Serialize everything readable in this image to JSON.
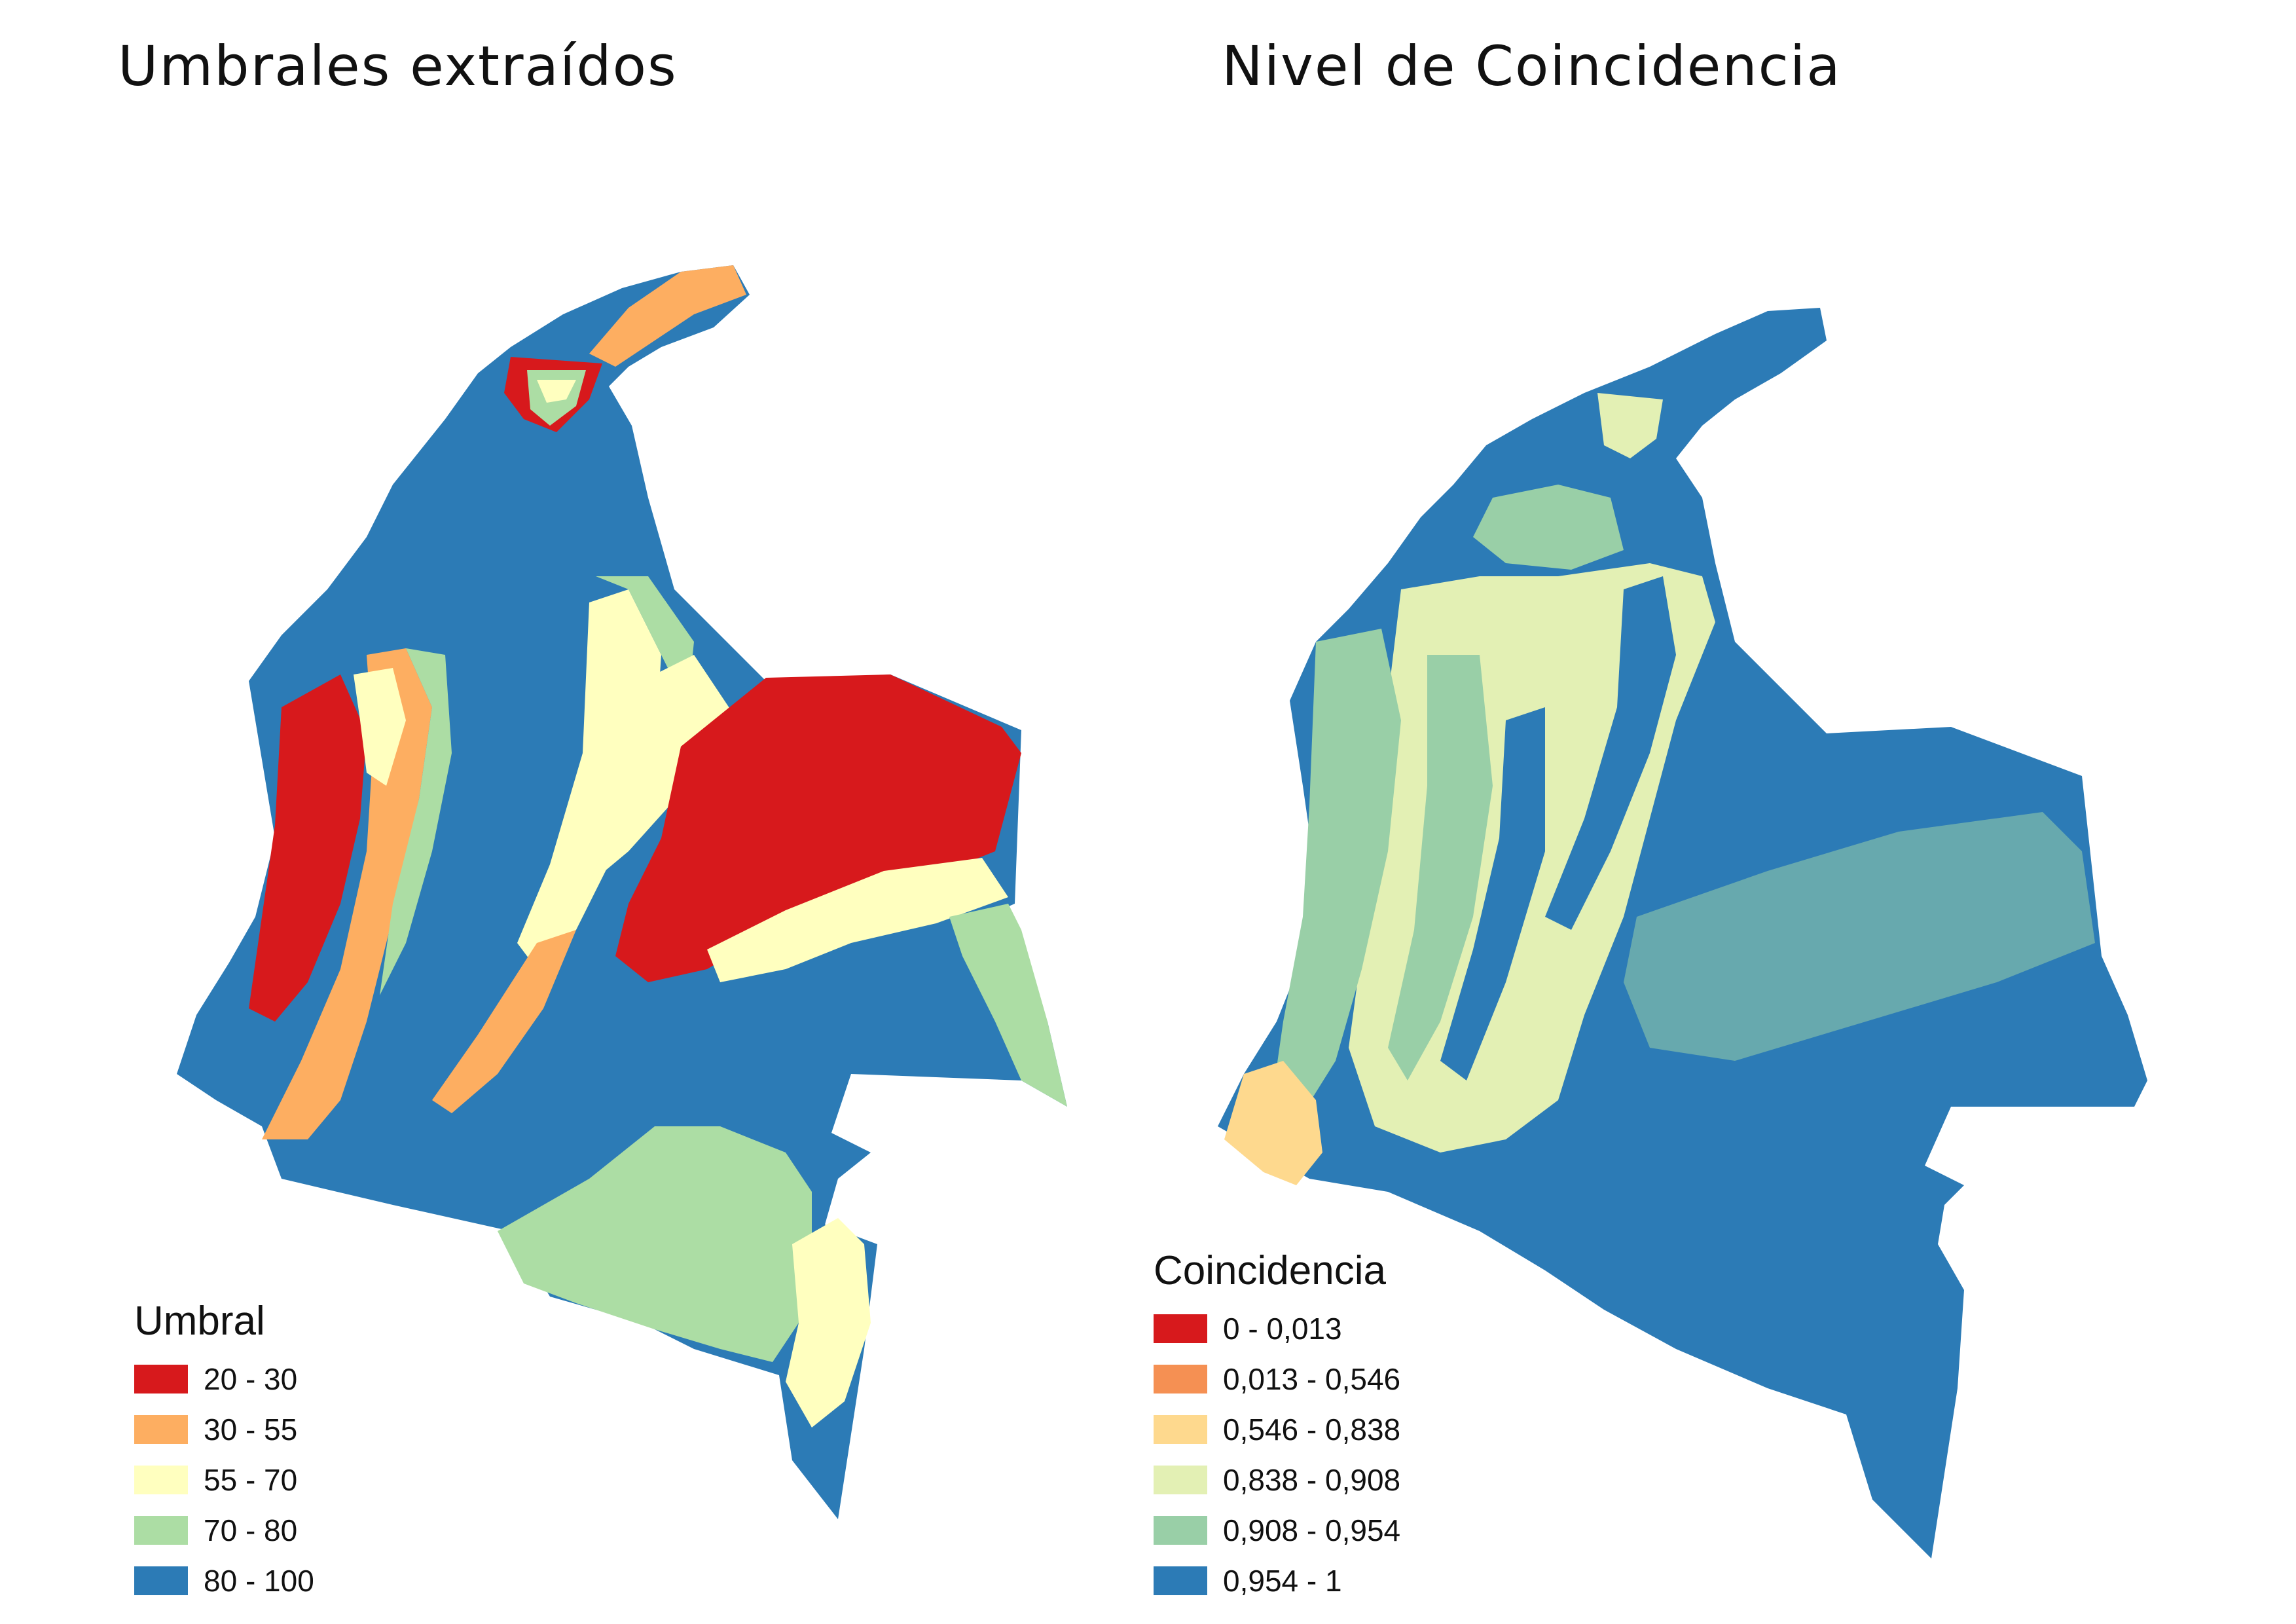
{
  "titles": {
    "left": "Umbrales extraídos",
    "right": "Nivel de Coincidencia"
  },
  "colors": {
    "red": "#d7191c",
    "orange": "#fdae61",
    "yellow": "#ffffbf",
    "light_green": "#a6d96a",
    "blue": "#2c7bb6",
    "right_orange": "#f59053",
    "right_peach": "#fed98e",
    "right_pale_green": "#e3f0b4",
    "right_mint": "#99cfa7"
  },
  "legend_left": {
    "title": "Umbral",
    "items": [
      {
        "label": "20 - 30",
        "color": "#d7191c"
      },
      {
        "label": "30 - 55",
        "color": "#fdae61"
      },
      {
        "label": "55 - 70",
        "color": "#ffffbf"
      },
      {
        "label": "70 - 80",
        "color": "#acdda4"
      },
      {
        "label": "80 - 100",
        "color": "#2c7bb6"
      }
    ]
  },
  "legend_right": {
    "title": "Coincidencia",
    "items": [
      {
        "label": "0 - 0,013",
        "color": "#d7191c"
      },
      {
        "label": "0,013 - 0,546",
        "color": "#f59053"
      },
      {
        "label": "0,546 - 0,838",
        "color": "#fed98e"
      },
      {
        "label": "0,838 - 0,908",
        "color": "#e3f0b4"
      },
      {
        "label": "0,908 - 0,954",
        "color": "#99cfa7"
      },
      {
        "label": "0,954 - 1",
        "color": "#2c7bb6"
      }
    ]
  }
}
